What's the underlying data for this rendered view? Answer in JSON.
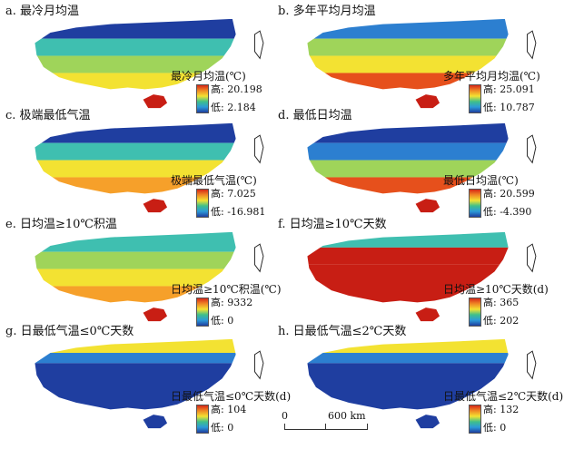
{
  "panels": [
    {
      "title": "a. 最冷月均温",
      "legend_title": "最冷月均温(℃)",
      "high": "高: 20.198",
      "low": "低: 2.184",
      "scheme": "a"
    },
    {
      "title": "b. 多年平均月均温",
      "legend_title": "多年平均月均温(℃)",
      "high": "高: 25.091",
      "low": "低: 10.787",
      "scheme": "b"
    },
    {
      "title": "c. 极端最低气温",
      "legend_title": "极端最低气温(℃)",
      "high": "高: 7.025",
      "low": "低: -16.981",
      "scheme": "c"
    },
    {
      "title": "d. 最低日均温",
      "legend_title": "最低日均温(℃)",
      "high": "高: 20.599",
      "low": "低: -4.390",
      "scheme": "d"
    },
    {
      "title": "e. 日均温≥10℃积温",
      "legend_title": "日均温≥10℃积温(℃)",
      "high": "高: 9332",
      "low": "低: 0",
      "scheme": "e"
    },
    {
      "title": "f. 日均温≥10℃天数",
      "legend_title": "日均温≥10℃天数(d)",
      "high": "高: 365",
      "low": "低: 202",
      "scheme": "f"
    },
    {
      "title": "g. 日最低气温≤0℃天数",
      "legend_title": "日最低气温≤0℃天数(d)",
      "high": "高: 104",
      "low": "低: 0",
      "scheme": "g"
    },
    {
      "title": "h. 日最低气温≤2℃天数",
      "legend_title": "日最低气温≤2℃天数(d)",
      "high": "高: 132",
      "low": "低: 0",
      "scheme": "h"
    }
  ],
  "scalebar": {
    "zero": "0",
    "max": "600 km"
  },
  "colors": {
    "high": "#d62818",
    "mid": "#f3e232",
    "low": "#1f3ea0"
  }
}
